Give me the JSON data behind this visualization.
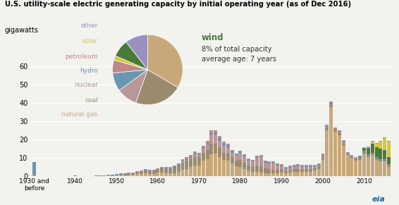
{
  "title": "U.S. utility-scale electric generating capacity by initial operating year (as of Dec 2016)",
  "ylabel": "gigawatts",
  "colors": {
    "natural_gas": "#C8A87A",
    "coal": "#9B8B6E",
    "nuclear": "#B8969A",
    "hydro": "#6A96B0",
    "petroleum": "#C08888",
    "solar": "#D4C840",
    "wind": "#4A7A38",
    "other": "#9A90C0"
  },
  "pie_slices": [
    {
      "key": "natural_gas",
      "pct": 0.335
    },
    {
      "key": "coal",
      "pct": 0.22
    },
    {
      "key": "nuclear",
      "pct": 0.095
    },
    {
      "key": "hydro",
      "pct": 0.085
    },
    {
      "key": "petroleum",
      "pct": 0.06
    },
    {
      "key": "solar",
      "pct": 0.02
    },
    {
      "key": "wind",
      "pct": 0.08
    },
    {
      "key": "other",
      "pct": 0.105
    }
  ],
  "legend_items": [
    {
      "label": "other",
      "key": "other"
    },
    {
      "label": "solar",
      "key": "solar"
    },
    {
      "label": "petroleum",
      "key": "petroleum"
    },
    {
      "label": "hydro",
      "key": "hydro"
    },
    {
      "label": "nuclear",
      "key": "nuclear"
    },
    {
      "label": "coal",
      "key": "coal"
    },
    {
      "label": "natural gas",
      "key": "natural_gas"
    }
  ],
  "bar_data": {
    "natural_gas": [
      0.5,
      0.0,
      0.0,
      0.0,
      0.0,
      0.0,
      0.1,
      0.0,
      0.0,
      0.0,
      0.1,
      0.0,
      0.1,
      0.0,
      0.1,
      0.1,
      0.2,
      0.1,
      0.3,
      0.2,
      0.4,
      0.5,
      0.6,
      0.7,
      0.7,
      1.2,
      1.4,
      1.5,
      1.3,
      1.2,
      2.0,
      2.2,
      1.5,
      1.5,
      1.8,
      2.5,
      3.5,
      4.0,
      5.0,
      5.5,
      6.0,
      8.5,
      9.5,
      12.0,
      12.5,
      10.5,
      9.0,
      8.5,
      7.0,
      5.5,
      5.0,
      4.0,
      3.0,
      2.5,
      2.5,
      2.0,
      1.5,
      1.5,
      1.5,
      1.5,
      2.0,
      1.5,
      2.0,
      2.5,
      2.5,
      2.5,
      2.5,
      2.5,
      3.0,
      4.0,
      9.0,
      25.0,
      38.0,
      24.5,
      22.5,
      17.0,
      11.5,
      10.0,
      8.5,
      9.0,
      12.5,
      10.5,
      11.5,
      9.0,
      8.0,
      8.0,
      5.0
    ],
    "coal": [
      0.3,
      0.0,
      0.0,
      0.0,
      0.0,
      0.0,
      0.0,
      0.0,
      0.0,
      0.0,
      0.1,
      0.0,
      0.0,
      0.0,
      0.0,
      0.1,
      0.1,
      0.2,
      0.2,
      0.3,
      0.5,
      0.5,
      0.5,
      0.5,
      0.5,
      0.8,
      1.0,
      1.5,
      1.5,
      1.5,
      1.5,
      2.0,
      2.5,
      2.5,
      3.0,
      3.5,
      4.0,
      4.5,
      4.5,
      5.0,
      4.5,
      4.5,
      5.0,
      6.0,
      5.5,
      5.5,
      4.0,
      4.0,
      3.5,
      3.0,
      4.0,
      3.5,
      3.0,
      2.5,
      3.5,
      3.5,
      3.0,
      2.5,
      2.0,
      2.0,
      2.0,
      1.5,
      1.5,
      1.5,
      1.5,
      1.5,
      1.5,
      1.5,
      1.5,
      1.5,
      1.5,
      1.5,
      1.0,
      1.0,
      1.0,
      1.0,
      0.5,
      0.5,
      0.5,
      0.5,
      0.5,
      0.5,
      0.5,
      0.5,
      0.5,
      0.5,
      0.5
    ],
    "nuclear": [
      0.0,
      0.0,
      0.0,
      0.0,
      0.0,
      0.0,
      0.0,
      0.0,
      0.0,
      0.0,
      0.0,
      0.0,
      0.0,
      0.0,
      0.0,
      0.0,
      0.0,
      0.0,
      0.0,
      0.0,
      0.0,
      0.0,
      0.0,
      0.0,
      0.0,
      0.0,
      0.0,
      0.0,
      0.0,
      0.0,
      0.0,
      0.0,
      0.0,
      0.0,
      0.0,
      0.0,
      0.5,
      0.5,
      0.5,
      1.0,
      1.0,
      2.0,
      3.0,
      5.0,
      5.0,
      3.5,
      3.5,
      3.5,
      2.5,
      3.0,
      4.0,
      3.5,
      2.5,
      3.0,
      4.0,
      5.0,
      3.0,
      3.0,
      3.5,
      2.5,
      1.5,
      1.0,
      1.0,
      1.0,
      1.5,
      1.0,
      1.0,
      1.0,
      0.5,
      0.5,
      0.5,
      0.5,
      0.5,
      0.0,
      0.5,
      0.5,
      0.0,
      0.0,
      0.0,
      0.0,
      0.0,
      0.0,
      0.0,
      0.0,
      0.0,
      0.0,
      0.0
    ],
    "hydro": [
      7.0,
      0.1,
      0.1,
      0.1,
      0.1,
      0.0,
      0.1,
      0.1,
      0.1,
      0.1,
      0.2,
      0.1,
      0.1,
      0.1,
      0.1,
      0.1,
      0.1,
      0.2,
      0.2,
      0.3,
      0.5,
      0.5,
      0.5,
      0.5,
      0.5,
      0.5,
      0.5,
      0.5,
      0.5,
      0.5,
      0.5,
      0.5,
      0.5,
      0.5,
      0.5,
      0.5,
      0.5,
      0.5,
      0.5,
      0.5,
      0.5,
      0.5,
      0.5,
      0.5,
      1.0,
      1.5,
      1.5,
      1.0,
      1.0,
      0.5,
      0.5,
      0.5,
      0.5,
      0.5,
      0.5,
      0.5,
      0.5,
      0.5,
      0.5,
      0.5,
      0.5,
      0.5,
      0.5,
      0.5,
      0.5,
      0.5,
      0.5,
      0.5,
      0.5,
      0.5,
      0.5,
      0.5,
      0.5,
      0.5,
      0.5,
      0.5,
      0.5,
      0.5,
      0.5,
      0.5,
      0.5,
      0.5,
      0.5,
      0.5,
      0.5,
      0.5,
      0.5
    ],
    "petroleum": [
      0.0,
      0.0,
      0.0,
      0.0,
      0.0,
      0.0,
      0.0,
      0.0,
      0.0,
      0.0,
      0.0,
      0.0,
      0.0,
      0.0,
      0.0,
      0.0,
      0.0,
      0.0,
      0.0,
      0.0,
      0.0,
      0.0,
      0.0,
      0.2,
      0.2,
      0.2,
      0.3,
      0.3,
      0.3,
      0.3,
      0.3,
      0.5,
      0.5,
      0.5,
      0.5,
      0.5,
      1.0,
      1.0,
      1.0,
      1.5,
      1.0,
      1.0,
      1.5,
      1.5,
      1.0,
      1.0,
      1.0,
      1.0,
      0.5,
      0.5,
      0.5,
      0.5,
      0.5,
      0.5,
      0.5,
      0.5,
      0.5,
      0.5,
      0.5,
      0.5,
      0.5,
      0.5,
      0.5,
      0.5,
      0.5,
      0.5,
      0.5,
      0.5,
      0.5,
      0.5,
      0.5,
      0.5,
      0.5,
      0.5,
      0.5,
      0.5,
      0.5,
      0.5,
      0.5,
      0.5,
      0.5,
      0.5,
      0.5,
      0.5,
      0.5,
      0.5,
      0.5
    ],
    "solar": [
      0.0,
      0.0,
      0.0,
      0.0,
      0.0,
      0.0,
      0.0,
      0.0,
      0.0,
      0.0,
      0.0,
      0.0,
      0.0,
      0.0,
      0.0,
      0.0,
      0.0,
      0.0,
      0.0,
      0.0,
      0.0,
      0.0,
      0.0,
      0.0,
      0.0,
      0.0,
      0.0,
      0.0,
      0.0,
      0.0,
      0.0,
      0.0,
      0.0,
      0.0,
      0.0,
      0.0,
      0.0,
      0.0,
      0.0,
      0.0,
      0.0,
      0.0,
      0.0,
      0.0,
      0.0,
      0.0,
      0.0,
      0.0,
      0.0,
      0.0,
      0.0,
      0.0,
      0.0,
      0.0,
      0.0,
      0.0,
      0.0,
      0.0,
      0.0,
      0.0,
      0.0,
      0.0,
      0.0,
      0.0,
      0.0,
      0.0,
      0.0,
      0.0,
      0.0,
      0.0,
      0.0,
      0.0,
      0.0,
      0.0,
      0.0,
      0.0,
      0.0,
      0.0,
      0.0,
      0.0,
      0.2,
      0.5,
      1.0,
      2.0,
      4.0,
      6.5,
      8.5
    ],
    "wind": [
      0.0,
      0.0,
      0.0,
      0.0,
      0.0,
      0.0,
      0.0,
      0.0,
      0.0,
      0.0,
      0.0,
      0.0,
      0.0,
      0.0,
      0.0,
      0.0,
      0.0,
      0.0,
      0.0,
      0.0,
      0.0,
      0.0,
      0.0,
      0.0,
      0.0,
      0.0,
      0.0,
      0.0,
      0.0,
      0.0,
      0.0,
      0.0,
      0.0,
      0.0,
      0.0,
      0.0,
      0.0,
      0.0,
      0.0,
      0.0,
      0.0,
      0.0,
      0.0,
      0.0,
      0.0,
      0.0,
      0.0,
      0.0,
      0.0,
      0.0,
      0.0,
      0.0,
      0.0,
      0.0,
      0.0,
      0.0,
      0.0,
      0.0,
      0.0,
      0.0,
      0.0,
      0.0,
      0.0,
      0.0,
      0.0,
      0.0,
      0.0,
      0.0,
      0.0,
      0.0,
      0.0,
      0.0,
      0.0,
      0.0,
      0.0,
      0.0,
      0.0,
      0.0,
      0.2,
      0.5,
      1.5,
      3.5,
      5.0,
      5.5,
      5.5,
      5.0,
      4.0
    ],
    "other": [
      0.0,
      0.0,
      0.0,
      0.0,
      0.0,
      0.0,
      0.0,
      0.0,
      0.0,
      0.0,
      0.0,
      0.0,
      0.0,
      0.0,
      0.0,
      0.0,
      0.0,
      0.0,
      0.0,
      0.0,
      0.0,
      0.0,
      0.0,
      0.0,
      0.0,
      0.0,
      0.0,
      0.0,
      0.0,
      0.0,
      0.0,
      0.0,
      0.0,
      0.0,
      0.0,
      0.0,
      0.0,
      0.0,
      0.0,
      0.0,
      0.0,
      0.0,
      0.0,
      0.0,
      0.0,
      0.0,
      0.0,
      0.0,
      0.0,
      0.0,
      0.1,
      0.1,
      0.1,
      0.1,
      0.1,
      0.1,
      0.1,
      0.1,
      0.1,
      0.1,
      0.2,
      0.2,
      0.2,
      0.2,
      0.2,
      0.2,
      0.2,
      0.2,
      0.2,
      0.2,
      0.3,
      0.3,
      0.3,
      0.3,
      0.3,
      0.3,
      0.3,
      0.3,
      0.3,
      0.3,
      0.3,
      0.3,
      0.3,
      0.3,
      0.3,
      0.3,
      0.3
    ]
  },
  "ylim": [
    0,
    65
  ],
  "yticks": [
    0,
    10,
    20,
    30,
    40,
    50,
    60
  ],
  "xtick_positions": [
    0,
    10,
    20,
    30,
    40,
    50,
    60,
    70,
    80
  ],
  "xtick_labels": [
    "1930 and\nbefore",
    "1940",
    "1950",
    "1960",
    "1970",
    "1980",
    "1990",
    "2000",
    "2010"
  ],
  "background": "#F2F2EE"
}
